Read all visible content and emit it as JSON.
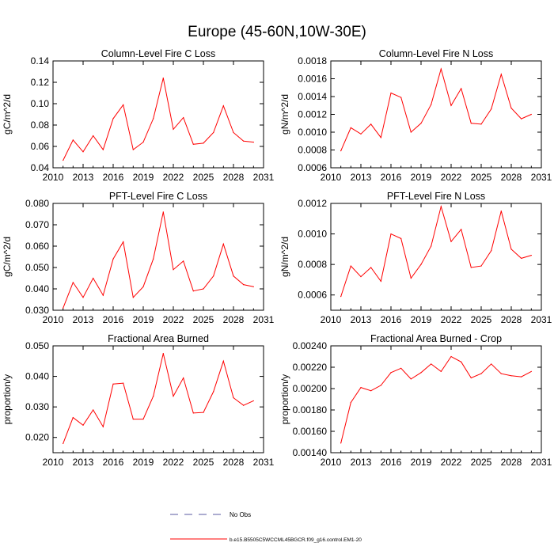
{
  "figure_title": "Europe (45-60N,10W-30E)",
  "legend": {
    "no_obs_label": "No Obs",
    "no_obs_color": "#5a5aa0",
    "model_label": "b.e15.B5505C5WCCML45BGCR.f09_g16.control.EM1-20",
    "model_color": "#ff0000"
  },
  "colors": {
    "axis": "#000000",
    "series": "#ff0000"
  },
  "chart_data": [
    {
      "type": "line",
      "title": "Column-Level Fire C Loss",
      "xlabel": "",
      "ylabel": "gC/m^2/d",
      "xlim": [
        2010,
        2031
      ],
      "ylim": [
        0.04,
        0.14
      ],
      "xticks": [
        2010,
        2013,
        2016,
        2019,
        2022,
        2025,
        2028,
        2031
      ],
      "yticks": [
        0.04,
        0.06,
        0.08,
        0.1,
        0.12,
        0.14
      ],
      "ytick_labels": [
        "0.04",
        "0.06",
        "0.08",
        "0.10",
        "0.12",
        "0.14"
      ],
      "x": [
        2011,
        2012,
        2013,
        2014,
        2015,
        2016,
        2017,
        2018,
        2019,
        2020,
        2021,
        2022,
        2023,
        2024,
        2025,
        2026,
        2027,
        2028,
        2029,
        2030
      ],
      "series": [
        {
          "name": "b.e15.B5505C5WCCML45BGCR.f09_g16.control.EM1-20",
          "values": [
            0.047,
            0.066,
            0.055,
            0.07,
            0.057,
            0.086,
            0.099,
            0.057,
            0.064,
            0.086,
            0.124,
            0.076,
            0.087,
            0.062,
            0.063,
            0.073,
            0.098,
            0.073,
            0.065,
            0.064
          ]
        }
      ]
    },
    {
      "type": "line",
      "title": "Column-Level Fire N Loss",
      "xlabel": "",
      "ylabel": "gN/m^2/d",
      "xlim": [
        2010,
        2031
      ],
      "ylim": [
        0.0006,
        0.0018
      ],
      "xticks": [
        2010,
        2013,
        2016,
        2019,
        2022,
        2025,
        2028,
        2031
      ],
      "yticks": [
        0.0006,
        0.0008,
        0.001,
        0.0012,
        0.0014,
        0.0016,
        0.0018
      ],
      "ytick_labels": [
        "0.0006",
        "0.0008",
        "0.0010",
        "0.0012",
        "0.0014",
        "0.0016",
        "0.0018"
      ],
      "x": [
        2011,
        2012,
        2013,
        2014,
        2015,
        2016,
        2017,
        2018,
        2019,
        2020,
        2021,
        2022,
        2023,
        2024,
        2025,
        2026,
        2027,
        2028,
        2029,
        2030
      ],
      "series": [
        {
          "name": "b.e15.B5505C5WCCML45BGCR.f09_g16.control.EM1-20",
          "values": [
            0.00079,
            0.00105,
            0.00098,
            0.00109,
            0.00094,
            0.00144,
            0.00139,
            0.001,
            0.0011,
            0.00131,
            0.00171,
            0.0013,
            0.00149,
            0.0011,
            0.00109,
            0.00126,
            0.00165,
            0.00127,
            0.00115,
            0.0012
          ]
        }
      ]
    },
    {
      "type": "line",
      "title": "PFT-Level Fire C Loss",
      "xlabel": "",
      "ylabel": "gC/m^2/d",
      "xlim": [
        2010,
        2031
      ],
      "ylim": [
        0.03,
        0.08
      ],
      "xticks": [
        2010,
        2013,
        2016,
        2019,
        2022,
        2025,
        2028,
        2031
      ],
      "yticks": [
        0.03,
        0.04,
        0.05,
        0.06,
        0.07,
        0.08
      ],
      "ytick_labels": [
        "0.030",
        "0.040",
        "0.050",
        "0.060",
        "0.070",
        "0.080"
      ],
      "x": [
        2011,
        2012,
        2013,
        2014,
        2015,
        2016,
        2017,
        2018,
        2019,
        2020,
        2021,
        2022,
        2023,
        2024,
        2025,
        2026,
        2027,
        2028,
        2029,
        2030
      ],
      "series": [
        {
          "name": "b.e15.B5505C5WCCML45BGCR.f09_g16.control.EM1-20",
          "values": [
            0.031,
            0.043,
            0.036,
            0.045,
            0.037,
            0.054,
            0.062,
            0.036,
            0.041,
            0.054,
            0.076,
            0.049,
            0.053,
            0.039,
            0.04,
            0.046,
            0.061,
            0.046,
            0.042,
            0.041
          ]
        }
      ]
    },
    {
      "type": "line",
      "title": "PFT-Level Fire N Loss",
      "xlabel": "",
      "ylabel": "gN/m^2/d",
      "xlim": [
        2010,
        2031
      ],
      "ylim": [
        0.0005,
        0.0012
      ],
      "xticks": [
        2010,
        2013,
        2016,
        2019,
        2022,
        2025,
        2028,
        2031
      ],
      "yticks": [
        0.0006,
        0.0008,
        0.001,
        0.0012
      ],
      "ytick_labels": [
        "0.0006",
        "0.0008",
        "0.0010",
        "0.0012"
      ],
      "x": [
        2011,
        2012,
        2013,
        2014,
        2015,
        2016,
        2017,
        2018,
        2019,
        2020,
        2021,
        2022,
        2023,
        2024,
        2025,
        2026,
        2027,
        2028,
        2029,
        2030
      ],
      "series": [
        {
          "name": "b.e15.B5505C5WCCML45BGCR.f09_g16.control.EM1-20",
          "values": [
            0.00059,
            0.00079,
            0.00072,
            0.00078,
            0.00069,
            0.001,
            0.00097,
            0.00071,
            0.0008,
            0.00092,
            0.00118,
            0.00095,
            0.00103,
            0.00078,
            0.00079,
            0.00089,
            0.00115,
            0.0009,
            0.00084,
            0.00086
          ]
        }
      ]
    },
    {
      "type": "line",
      "title": "Fractional Area Burned",
      "xlabel": "",
      "ylabel": "proportion/y",
      "xlim": [
        2010,
        2031
      ],
      "ylim": [
        0.015,
        0.05
      ],
      "xticks": [
        2010,
        2013,
        2016,
        2019,
        2022,
        2025,
        2028,
        2031
      ],
      "yticks": [
        0.02,
        0.03,
        0.04,
        0.05
      ],
      "ytick_labels": [
        "0.020",
        "0.030",
        "0.040",
        "0.050"
      ],
      "x": [
        2011,
        2012,
        2013,
        2014,
        2015,
        2016,
        2017,
        2018,
        2019,
        2020,
        2021,
        2022,
        2023,
        2024,
        2025,
        2026,
        2027,
        2028,
        2029,
        2030
      ],
      "series": [
        {
          "name": "b.e15.B5505C5WCCML45BGCR.f09_g16.control.EM1-20",
          "values": [
            0.018,
            0.0265,
            0.024,
            0.029,
            0.0235,
            0.0375,
            0.0378,
            0.026,
            0.026,
            0.0335,
            0.0475,
            0.0335,
            0.0395,
            0.028,
            0.0282,
            0.035,
            0.045,
            0.033,
            0.0305,
            0.032
          ]
        }
      ]
    },
    {
      "type": "line",
      "title": "Fractional Area Burned - Crop",
      "xlabel": "",
      "ylabel": "proportion/y",
      "xlim": [
        2010,
        2031
      ],
      "ylim": [
        0.0014,
        0.0024
      ],
      "xticks": [
        2010,
        2013,
        2016,
        2019,
        2022,
        2025,
        2028,
        2031
      ],
      "yticks": [
        0.0014,
        0.0016,
        0.0018,
        0.002,
        0.0022,
        0.0024
      ],
      "ytick_labels": [
        "0.00140",
        "0.00160",
        "0.00180",
        "0.00200",
        "0.00220",
        "0.00240"
      ],
      "x": [
        2011,
        2012,
        2013,
        2014,
        2015,
        2016,
        2017,
        2018,
        2019,
        2020,
        2021,
        2022,
        2023,
        2024,
        2025,
        2026,
        2027,
        2028,
        2029,
        2030
      ],
      "series": [
        {
          "name": "b.e15.B5505C5WCCML45BGCR.f09_g16.control.EM1-20",
          "values": [
            0.00149,
            0.00187,
            0.00201,
            0.00198,
            0.00203,
            0.00215,
            0.00219,
            0.00209,
            0.00215,
            0.00223,
            0.00216,
            0.0023,
            0.00225,
            0.0021,
            0.00214,
            0.00223,
            0.00214,
            0.00212,
            0.00211,
            0.00216
          ]
        }
      ]
    }
  ]
}
